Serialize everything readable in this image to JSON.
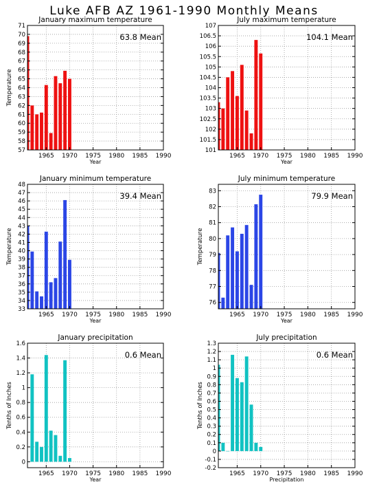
{
  "title": "Luke AFB AZ   1961-1990 Monthly Means",
  "colors": {
    "max": "#ee1111",
    "min": "#2b46e6",
    "precip": "#11c2c2"
  },
  "chart_data": [
    {
      "type": "bar",
      "title": "January maximum temperature",
      "mean_label": "63.8 Mean",
      "xlabel": "Year",
      "ylabel": "Temperature",
      "color": "max",
      "x": [
        1961,
        1962,
        1963,
        1964,
        1965,
        1966,
        1967,
        1968,
        1969,
        1970
      ],
      "values": [
        69.8,
        62.0,
        61.0,
        61.2,
        64.3,
        58.9,
        65.3,
        64.5,
        65.9,
        65.0
      ],
      "ylim": [
        57,
        71
      ],
      "yticks": [
        57,
        58,
        59,
        60,
        61,
        62,
        63,
        64,
        65,
        66,
        67,
        68,
        69,
        70,
        71
      ],
      "xlim": [
        1961,
        1990
      ],
      "xticks": [
        1965,
        1970,
        1975,
        1980,
        1985,
        1990
      ],
      "grid": true
    },
    {
      "type": "bar",
      "title": "July maximum temperature",
      "mean_label": "104.1 Mean",
      "xlabel": "Year",
      "ylabel": "",
      "color": "max",
      "x": [
        1961,
        1962,
        1963,
        1964,
        1965,
        1966,
        1967,
        1968,
        1969,
        1970
      ],
      "values": [
        103.3,
        103.0,
        104.5,
        104.8,
        103.6,
        105.1,
        102.9,
        101.8,
        106.3,
        105.65
      ],
      "ylim": [
        101,
        107
      ],
      "yticks": [
        101,
        101.5,
        102,
        102.5,
        103,
        103.5,
        104,
        104.5,
        105,
        105.5,
        106,
        106.5,
        107
      ],
      "xlim": [
        1961,
        1990
      ],
      "xticks": [
        1965,
        1970,
        1975,
        1980,
        1985,
        1990
      ],
      "grid": true
    },
    {
      "type": "bar",
      "title": "January minimum temperature",
      "mean_label": "39.4 Mean",
      "xlabel": "Year",
      "ylabel": "Temperature",
      "color": "min",
      "x": [
        1961,
        1962,
        1963,
        1964,
        1965,
        1966,
        1967,
        1968,
        1969,
        1970
      ],
      "values": [
        43.0,
        39.9,
        35.1,
        34.5,
        42.3,
        36.2,
        36.7,
        41.1,
        46.1,
        38.9
      ],
      "ylim": [
        33,
        48
      ],
      "yticks": [
        33,
        34,
        35,
        36,
        37,
        38,
        39,
        40,
        41,
        42,
        43,
        44,
        45,
        46,
        47,
        48
      ],
      "xlim": [
        1961,
        1990
      ],
      "xticks": [
        1965,
        1970,
        1975,
        1980,
        1985,
        1990
      ],
      "grid": true
    },
    {
      "type": "bar",
      "title": "July minimum temperature",
      "mean_label": "79.9 Mean",
      "xlabel": "Year",
      "ylabel": "Temperature",
      "color": "min",
      "x": [
        1961,
        1962,
        1963,
        1964,
        1965,
        1966,
        1967,
        1968,
        1969,
        1970
      ],
      "values": [
        79.1,
        76.3,
        80.2,
        80.7,
        79.2,
        80.3,
        80.85,
        77.1,
        82.15,
        82.75
      ],
      "ylim": [
        75.6,
        83.4
      ],
      "yticks": [
        76,
        77,
        78,
        79,
        80,
        81,
        82,
        83
      ],
      "xlim": [
        1961,
        1990
      ],
      "xticks": [
        1965,
        1970,
        1975,
        1980,
        1985,
        1990
      ],
      "grid": true
    },
    {
      "type": "bar",
      "title": "January precipitation",
      "mean_label": "0.6 Mean",
      "xlabel": "Year",
      "ylabel": "Tenths of Inches",
      "color": "precip",
      "x": [
        1961,
        1962,
        1963,
        1964,
        1965,
        1966,
        1967,
        1968,
        1969,
        1970
      ],
      "values": [
        0.0,
        1.18,
        0.27,
        0.2,
        1.44,
        0.42,
        0.36,
        0.08,
        1.37,
        0.05
      ],
      "ylim": [
        -0.08,
        1.6
      ],
      "yticks": [
        0,
        0.2,
        0.4,
        0.6,
        0.8,
        1,
        1.2,
        1.4,
        1.6
      ],
      "xlim": [
        1961,
        1990
      ],
      "xticks": [
        1965,
        1970,
        1975,
        1980,
        1985,
        1990
      ],
      "grid": true
    },
    {
      "type": "bar",
      "title": "July precipitation",
      "mean_label": "0.6 Mean",
      "xlabel": "Precipitation",
      "ylabel": "Tenths of Inches",
      "color": "precip",
      "x": [
        1961,
        1962,
        1963,
        1964,
        1965,
        1966,
        1967,
        1968,
        1969,
        1970
      ],
      "values": [
        1.04,
        0.1,
        0.0,
        1.16,
        0.88,
        0.83,
        1.14,
        0.56,
        0.1,
        0.05
      ],
      "ylim": [
        -0.2,
        1.3
      ],
      "yticks": [
        -0.2,
        -0.1,
        0,
        0.1,
        0.2,
        0.3,
        0.4,
        0.5,
        0.6,
        0.7,
        0.8,
        0.9,
        1,
        1.1,
        1.2,
        1.3
      ],
      "xlim": [
        1961,
        1990
      ],
      "xticks": [
        1965,
        1970,
        1975,
        1980,
        1985,
        1990
      ],
      "grid": true
    }
  ]
}
